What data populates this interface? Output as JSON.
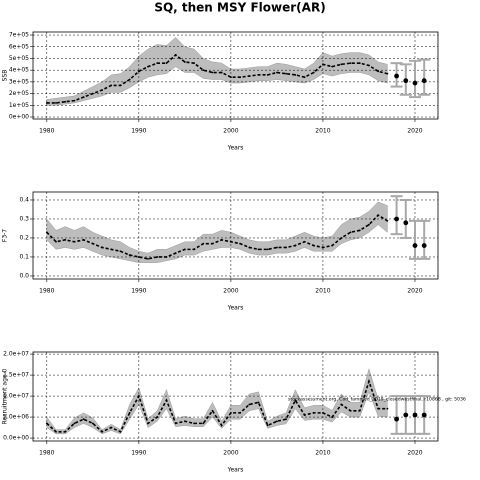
{
  "title": "SQ, then MSY Flower(AR)",
  "chart_data": [
    {
      "type": "line",
      "ylabel": "SSB",
      "xlabel": "Years",
      "x": [
        1980,
        1981,
        1982,
        1983,
        1984,
        1985,
        1986,
        1987,
        1988,
        1989,
        1990,
        1991,
        1992,
        1993,
        1994,
        1995,
        1996,
        1997,
        1998,
        1999,
        2000,
        2001,
        2002,
        2003,
        2004,
        2005,
        2006,
        2007,
        2008,
        2009,
        2010,
        2011,
        2012,
        2013,
        2014,
        2015,
        2016,
        2017
      ],
      "values": [
        120000.0,
        120000.0,
        130000.0,
        140000.0,
        170000.0,
        200000.0,
        230000.0,
        270000.0,
        270000.0,
        320000.0,
        390000.0,
        430000.0,
        460000.0,
        460000.0,
        530000.0,
        470000.0,
        460000.0,
        400000.0,
        380000.0,
        380000.0,
        340000.0,
        340000.0,
        350000.0,
        360000.0,
        360000.0,
        380000.0,
        370000.0,
        360000.0,
        340000.0,
        380000.0,
        450000.0,
        430000.0,
        450000.0,
        460000.0,
        460000.0,
        440000.0,
        390000.0,
        370000.0
      ],
      "lower": [
        100000.0,
        100000.0,
        110000.0,
        120000.0,
        140000.0,
        160000.0,
        180000.0,
        210000.0,
        210000.0,
        250000.0,
        300000.0,
        340000.0,
        360000.0,
        370000.0,
        430000.0,
        380000.0,
        380000.0,
        330000.0,
        320000.0,
        320000.0,
        290000.0,
        290000.0,
        300000.0,
        310000.0,
        310000.0,
        320000.0,
        310000.0,
        300000.0,
        290000.0,
        320000.0,
        370000.0,
        350000.0,
        370000.0,
        380000.0,
        380000.0,
        360000.0,
        310000.0,
        290000.0
      ],
      "upper": [
        150000.0,
        160000.0,
        170000.0,
        180000.0,
        220000.0,
        260000.0,
        300000.0,
        360000.0,
        370000.0,
        430000.0,
        520000.0,
        580000.0,
        620000.0,
        610000.0,
        680000.0,
        600000.0,
        580000.0,
        500000.0,
        470000.0,
        460000.0,
        410000.0,
        410000.0,
        420000.0,
        430000.0,
        430000.0,
        460000.0,
        450000.0,
        430000.0,
        410000.0,
        460000.0,
        550000.0,
        520000.0,
        540000.0,
        550000.0,
        550000.0,
        530000.0,
        470000.0,
        450000.0
      ],
      "proj_x": [
        2018,
        2019,
        2020,
        2021
      ],
      "proj_values": [
        350000.0,
        310000.0,
        290000.0,
        310000.0
      ],
      "proj_lower": [
        260000.0,
        190000.0,
        170000.0,
        190000.0
      ],
      "proj_upper": [
        460000.0,
        450000.0,
        480000.0,
        490000.0
      ],
      "xlim": [
        1978.5,
        2022.5
      ],
      "xticks": [
        1980,
        1990,
        2000,
        2010,
        2020
      ],
      "ylim": [
        -17000.0,
        726000.0
      ],
      "yticks": [
        {
          "value": 0,
          "label": "0e+00"
        },
        {
          "value": 100000,
          "label": "1e+05"
        },
        {
          "value": 200000,
          "label": "2e+05"
        },
        {
          "value": 300000,
          "label": "3e+05"
        },
        {
          "value": 400000,
          "label": "4e+05"
        },
        {
          "value": 500000,
          "label": "5e+05"
        },
        {
          "value": 600000,
          "label": "6e+05"
        },
        {
          "value": 700000,
          "label": "7e+05"
        }
      ],
      "grid": true,
      "color": "#000000",
      "band_color": "#bdbdbd",
      "proj_bar_color": "#a8a8a8"
    },
    {
      "type": "line",
      "ylabel": "F3-7",
      "xlabel": "Years",
      "x": [
        1980,
        1981,
        1982,
        1983,
        1984,
        1985,
        1986,
        1987,
        1988,
        1989,
        1990,
        1991,
        1992,
        1993,
        1994,
        1995,
        1996,
        1997,
        1998,
        1999,
        2000,
        2001,
        2002,
        2003,
        2004,
        2005,
        2006,
        2007,
        2008,
        2009,
        2010,
        2011,
        2012,
        2013,
        2014,
        2015,
        2016,
        2017
      ],
      "values": [
        0.23,
        0.18,
        0.19,
        0.18,
        0.19,
        0.17,
        0.15,
        0.14,
        0.13,
        0.11,
        0.1,
        0.09,
        0.1,
        0.1,
        0.12,
        0.14,
        0.14,
        0.17,
        0.17,
        0.19,
        0.18,
        0.17,
        0.15,
        0.14,
        0.14,
        0.15,
        0.15,
        0.16,
        0.18,
        0.16,
        0.15,
        0.16,
        0.2,
        0.23,
        0.24,
        0.27,
        0.32,
        0.29
      ],
      "lower": [
        0.19,
        0.14,
        0.15,
        0.14,
        0.15,
        0.13,
        0.11,
        0.1,
        0.09,
        0.08,
        0.07,
        0.07,
        0.07,
        0.08,
        0.09,
        0.11,
        0.11,
        0.13,
        0.14,
        0.15,
        0.15,
        0.14,
        0.12,
        0.11,
        0.11,
        0.12,
        0.12,
        0.13,
        0.15,
        0.13,
        0.13,
        0.13,
        0.17,
        0.19,
        0.2,
        0.23,
        0.27,
        0.23
      ],
      "upper": [
        0.3,
        0.24,
        0.26,
        0.24,
        0.26,
        0.23,
        0.21,
        0.19,
        0.18,
        0.15,
        0.13,
        0.12,
        0.14,
        0.14,
        0.16,
        0.18,
        0.18,
        0.22,
        0.22,
        0.24,
        0.23,
        0.21,
        0.19,
        0.18,
        0.18,
        0.19,
        0.19,
        0.21,
        0.23,
        0.21,
        0.2,
        0.21,
        0.27,
        0.3,
        0.31,
        0.34,
        0.39,
        0.37
      ],
      "proj_x": [
        2018,
        2019,
        2020,
        2021
      ],
      "proj_values": [
        0.3,
        0.28,
        0.16,
        0.16
      ],
      "proj_lower": [
        0.22,
        0.2,
        0.09,
        0.09
      ],
      "proj_upper": [
        0.42,
        0.4,
        0.29,
        0.29
      ],
      "xlim": [
        1978.5,
        2022.5
      ],
      "xticks": [
        1980,
        1990,
        2000,
        2010,
        2020
      ],
      "ylim": [
        -0.016,
        0.442
      ],
      "yticks": [
        {
          "value": 0,
          "label": "0.0"
        },
        0.1,
        0.2,
        0.3,
        0.4
      ],
      "grid": true,
      "color": "#000000",
      "band_color": "#bdbdbd",
      "proj_bar_color": "#a8a8a8"
    },
    {
      "type": "line",
      "ylabel": "Recruitment age 0",
      "xlabel": "Years",
      "annotation": "stockassessment.org, Cod_fammed_2019_closedwestfinal, r10868 , git: 5036",
      "x": [
        1980,
        1981,
        1982,
        1983,
        1984,
        1985,
        1986,
        1987,
        1988,
        1989,
        1990,
        1991,
        1992,
        1993,
        1994,
        1995,
        1996,
        1997,
        1998,
        1999,
        2000,
        2001,
        2002,
        2003,
        2004,
        2005,
        2006,
        2007,
        2008,
        2009,
        2010,
        2011,
        2012,
        2013,
        2014,
        2015,
        2016,
        2017
      ],
      "values": [
        3500000.0,
        1500000.0,
        1500000.0,
        3500000.0,
        4500000.0,
        3500000.0,
        1500000.0,
        2500000.0,
        1500000.0,
        6000000.0,
        10000000.0,
        3500000.0,
        5000000.0,
        9000000.0,
        3500000.0,
        4000000.0,
        3500000.0,
        3500000.0,
        6500000.0,
        3000000.0,
        6000000.0,
        6000000.0,
        8000000.0,
        8500000.0,
        3000000.0,
        4000000.0,
        4500000.0,
        9000000.0,
        5500000.0,
        6000000.0,
        6000000.0,
        5000000.0,
        8000000.0,
        6500000.0,
        6500000.0,
        13500000.0,
        7000000.0,
        7000000.0
      ],
      "lower": [
        2500000.0,
        1000000.0,
        1000000.0,
        2500000.0,
        3500000.0,
        2500000.0,
        1000000.0,
        1800000.0,
        1000000.0,
        4500000.0,
        8000000.0,
        2500000.0,
        4000000.0,
        7000000.0,
        2700000.0,
        3000000.0,
        2700000.0,
        2700000.0,
        5000000.0,
        2300000.0,
        4500000.0,
        4500000.0,
        6500000.0,
        7000000.0,
        2300000.0,
        3000000.0,
        3400000.0,
        7000000.0,
        4200000.0,
        4500000.0,
        4500000.0,
        3800000.0,
        6200000.0,
        5000000.0,
        5000000.0,
        11000000.0,
        5200000.0,
        5000000.0
      ],
      "upper": [
        5000000.0,
        2000000.0,
        2000000.0,
        4800000.0,
        6000000.0,
        4800000.0,
        2000000.0,
        3300000.0,
        2000000.0,
        8000000.0,
        12000000.0,
        4600000.0,
        6500000.0,
        11500000.0,
        4600000.0,
        5200000.0,
        4600000.0,
        4600000.0,
        8500000.0,
        4000000.0,
        7800000.0,
        7800000.0,
        10500000.0,
        11000000.0,
        4000000.0,
        5200000.0,
        6000000.0,
        11500000.0,
        7200000.0,
        7800000.0,
        7800000.0,
        6600000.0,
        10500000.0,
        8500000.0,
        8500000.0,
        16500000.0,
        9200000.0,
        9200000.0
      ],
      "proj_x": [
        2018,
        2019,
        2020,
        2021
      ],
      "proj_values": [
        4500000.0,
        5500000.0,
        5500000.0,
        5500000.0
      ],
      "proj_lower": [
        1000000.0,
        1000000.0,
        1000000.0,
        1000000.0
      ],
      "proj_upper": [
        10000000.0,
        10000000.0,
        10000000.0,
        10000000.0
      ],
      "xlim": [
        1978.5,
        2022.5
      ],
      "xticks": [
        1980,
        1990,
        2000,
        2010,
        2020
      ],
      "ylim": [
        -700000.0,
        20500000.0
      ],
      "yticks": [
        {
          "value": 0,
          "label": "0.0e+00"
        },
        {
          "value": 5000000,
          "label": "5.0e+06"
        },
        {
          "value": 10000000,
          "label": "1.0e+07"
        },
        {
          "value": 15000000,
          "label": "1.5e+07"
        },
        {
          "value": 20000000,
          "label": "2.0e+07"
        }
      ],
      "grid": true,
      "color": "#000000",
      "band_color": "#bdbdbd",
      "proj_bar_color": "#a8a8a8"
    }
  ]
}
